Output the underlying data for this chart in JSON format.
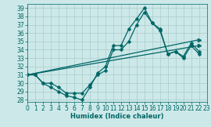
{
  "xlabel": "Humidex (Indice chaleur)",
  "background_color": "#cce8e8",
  "grid_color": "#aacccc",
  "line_color": "#006666",
  "xlim": [
    0,
    23
  ],
  "ylim": [
    27.8,
    39.5
  ],
  "yticks": [
    28,
    29,
    30,
    31,
    32,
    33,
    34,
    35,
    36,
    37,
    38,
    39
  ],
  "xticks": [
    0,
    1,
    2,
    3,
    4,
    5,
    6,
    7,
    8,
    9,
    10,
    11,
    12,
    13,
    14,
    15,
    16,
    17,
    18,
    19,
    20,
    21,
    22,
    23
  ],
  "line1_x": [
    0,
    1,
    2,
    3,
    4,
    5,
    6,
    7,
    8,
    9,
    10,
    11,
    12,
    13,
    14,
    15,
    16,
    17,
    18,
    19,
    20,
    21,
    22
  ],
  "line1_y": [
    31.0,
    31.0,
    30.0,
    29.5,
    29.0,
    28.5,
    28.3,
    28.0,
    29.5,
    31.2,
    32.0,
    34.5,
    34.5,
    36.5,
    37.7,
    39.0,
    37.2,
    36.3,
    33.5,
    33.8,
    33.2,
    34.8,
    33.8
  ],
  "line2_x": [
    0,
    1,
    2,
    3,
    4,
    5,
    6,
    7,
    8,
    9,
    10,
    11,
    12,
    13,
    14,
    15,
    16,
    17,
    18,
    19,
    20,
    21,
    22
  ],
  "line2_y": [
    31.0,
    31.0,
    30.0,
    30.0,
    29.5,
    28.8,
    28.8,
    28.8,
    29.8,
    31.0,
    31.5,
    34.0,
    34.0,
    35.0,
    37.0,
    38.5,
    37.2,
    36.5,
    33.5,
    33.8,
    33.0,
    34.5,
    33.5
  ],
  "line3_x": [
    0,
    22
  ],
  "line3_y": [
    31.0,
    34.5
  ],
  "line4_x": [
    0,
    22
  ],
  "line4_y": [
    31.0,
    35.2
  ],
  "marker_size": 2.5,
  "linewidth": 0.9,
  "tick_fontsize": 5.5,
  "xlabel_fontsize": 6.0
}
